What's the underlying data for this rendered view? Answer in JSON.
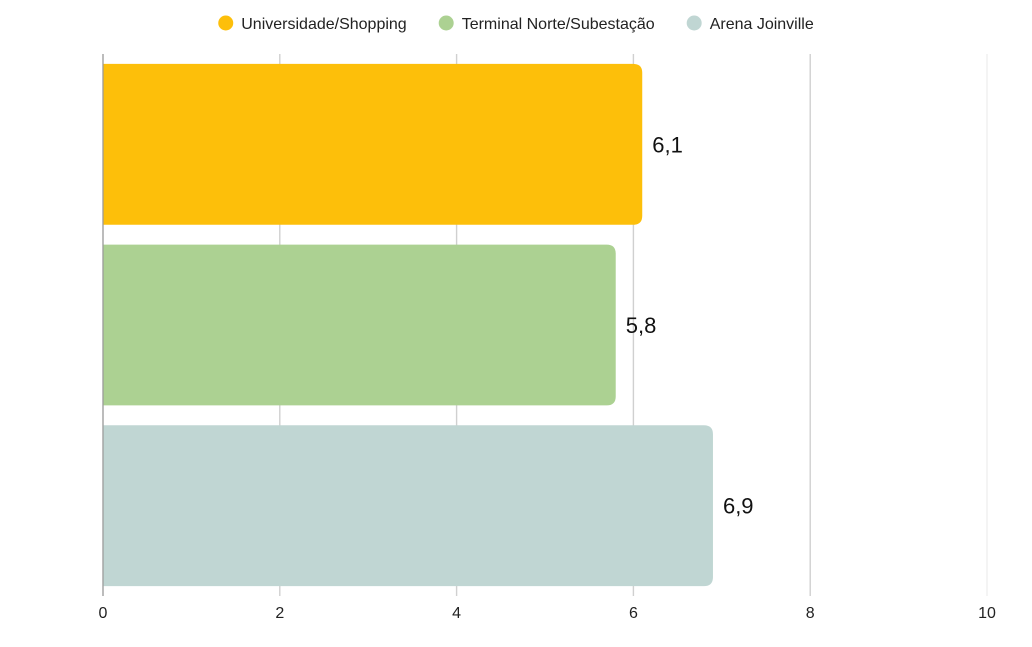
{
  "chart_data": {
    "type": "bar",
    "orientation": "horizontal",
    "categories": [
      "Universidade/Shopping",
      "Terminal Norte/Subestação",
      "Arena Joinville"
    ],
    "values": [
      6.1,
      5.8,
      6.9
    ],
    "value_labels": [
      "6,1",
      "5,8",
      "6,9"
    ],
    "colors": [
      "#FDBF0A",
      "#ACD192",
      "#C0D6D3"
    ],
    "xlim": [
      0,
      10
    ],
    "xticks": [
      0,
      2,
      4,
      6,
      8,
      10
    ],
    "xtick_labels": [
      "0",
      "2",
      "4",
      "6",
      "8",
      "10"
    ],
    "grid": true,
    "legend_position": "top-center",
    "title": "",
    "xlabel": "",
    "ylabel": ""
  }
}
